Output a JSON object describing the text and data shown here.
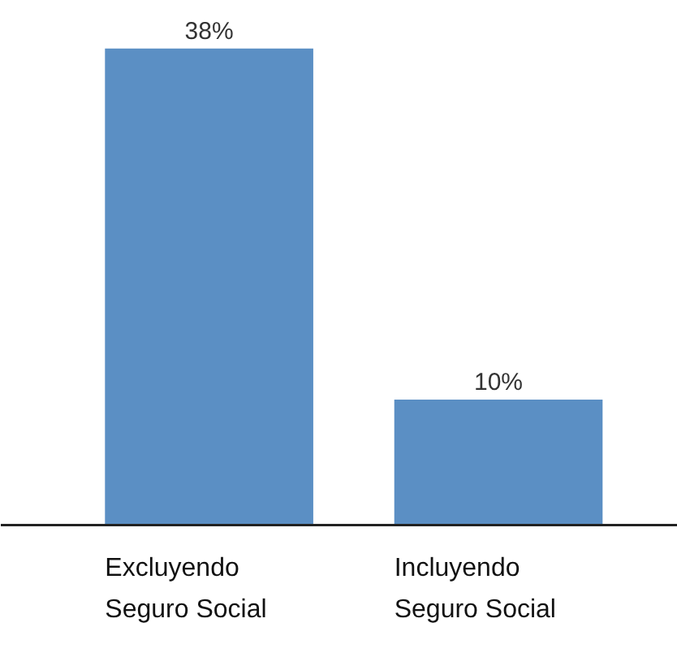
{
  "chart_data": {
    "type": "bar",
    "categories": [
      "Excluyendo\nSeguro Social",
      "Incluyendo\nSeguro Social"
    ],
    "values": [
      38,
      10
    ],
    "color": "#5b8fc4",
    "value_labels": [
      "38%",
      "10%"
    ]
  }
}
